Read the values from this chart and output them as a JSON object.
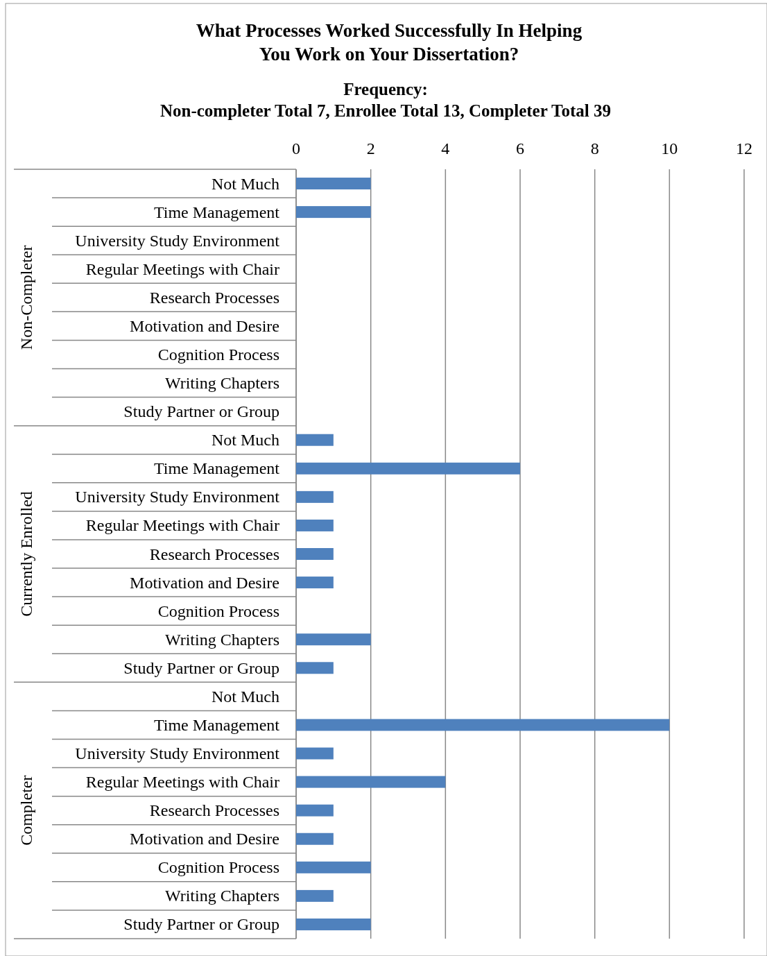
{
  "chart_data": {
    "type": "bar",
    "orientation": "horizontal",
    "title": "What Processes Worked Successfully In Helping\nYou Work on Your Dissertation?",
    "subtitle": "Frequency:\nNon-completer Total 7, Enrollee Total 13, Completer Total 39",
    "categories": [
      "Not Much",
      "Time Management",
      "University Study Environment",
      "Regular Meetings with Chair",
      "Research Processes",
      "Motivation and Desire",
      "Cognition Process",
      "Writing Chapters",
      "Study Partner or Group",
      "Not Much",
      "Time Management",
      "University Study Environment",
      "Regular Meetings with Chair",
      "Research Processes",
      "Motivation and Desire",
      "Cognition Process",
      "Writing Chapters",
      "Study Partner or Group",
      "Not Much",
      "Time Management",
      "University Study Environment",
      "Regular Meetings with Chair",
      "Research Processes",
      "Motivation and Desire",
      "Cognition Process",
      "Writing Chapters",
      "Study Partner or Group"
    ],
    "values": [
      2,
      2,
      0,
      0,
      0,
      0,
      0,
      0,
      0,
      1,
      6,
      1,
      1,
      1,
      1,
      0,
      2,
      1,
      0,
      10,
      1,
      4,
      1,
      1,
      2,
      1,
      2
    ],
    "color": "#4f81bd",
    "annotations": [
      "Non-Completer",
      "Currently Enrolled",
      "Completer"
    ],
    "xlim": [
      0,
      12
    ],
    "xticks": [
      0,
      2,
      4,
      6,
      8,
      10,
      12
    ],
    "grid": "x"
  }
}
